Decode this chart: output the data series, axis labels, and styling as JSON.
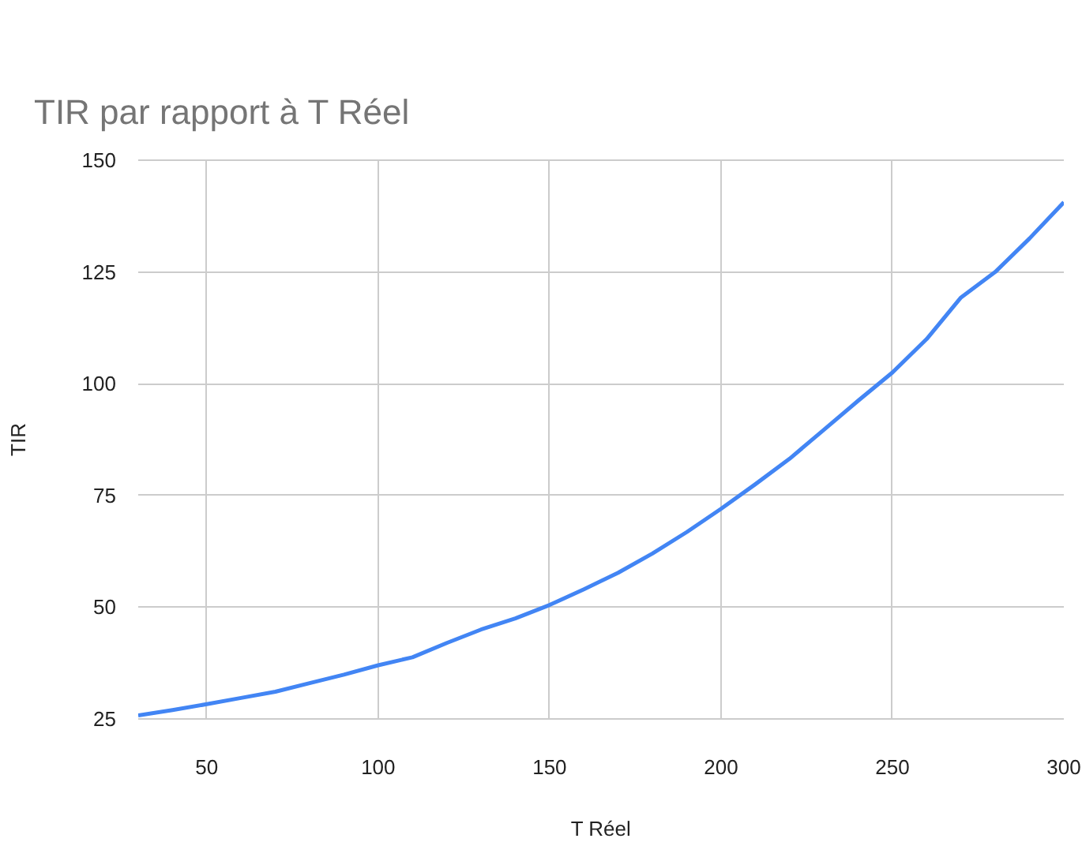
{
  "chart_data": {
    "type": "line",
    "title": "TIR par rapport à T Réel",
    "xlabel": "T Réel",
    "ylabel": "TIR",
    "x": [
      30,
      40,
      50,
      60,
      70,
      80,
      90,
      100,
      110,
      120,
      130,
      140,
      150,
      160,
      170,
      180,
      190,
      200,
      210,
      220,
      230,
      240,
      250,
      260,
      270,
      280,
      290,
      300
    ],
    "series": [
      {
        "color": "#4285f4",
        "values": [
          25.8,
          27,
          28.3,
          29.7,
          31.1,
          33,
          34.9,
          37,
          38.8,
          42,
          45,
          47.5,
          50.5,
          54,
          57.7,
          62,
          66.8,
          72,
          77.5,
          83.2,
          89.7,
          96.2,
          102.5,
          110,
          119.3,
          125,
          132.5,
          140.6
        ]
      }
    ],
    "xlim": [
      30,
      300
    ],
    "ylim": [
      25,
      150
    ],
    "xticks": [
      50,
      100,
      150,
      200,
      250,
      300
    ],
    "yticks": [
      25,
      50,
      75,
      100,
      125,
      150
    ],
    "grid": true,
    "line_style": "solid"
  }
}
